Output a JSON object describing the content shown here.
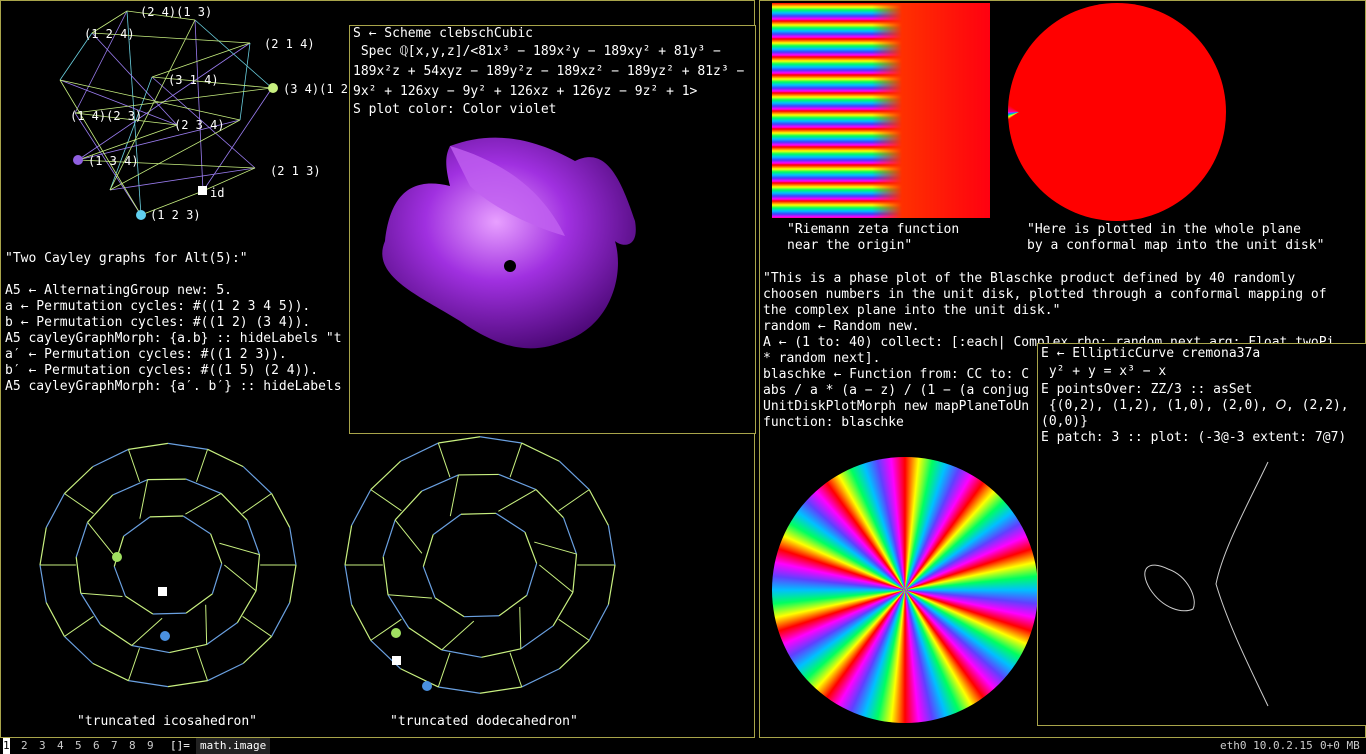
{
  "left": {
    "graph_labels": [
      "(2 4)(1 3)",
      "(1 2 4)",
      "(2 1 4)",
      "(3 1 4)",
      "(3 4)(1 2)",
      "(1 4)(2 3)",
      "(2 3 4)",
      "(1 3 4)",
      "(2 1 3)",
      "id",
      "(1 2 3)"
    ],
    "code": [
      "\"Two Cayley graphs for Alt(5):\"",
      "",
      "A5 ← AlternatingGroup new: 5.",
      "a ← Permutation cycles: #((1 2 3 4 5)).",
      "b ← Permutation cycles: #((1 2) (3 4)).",
      "A5 cayleyGraphMorph: {a.b} :: hideLabels \"t",
      "a′ ← Permutation cycles: #((1 2 3)).",
      "b′ ← Permutation cycles: #((1 5) (2 4)).",
      "A5 cayleyGraphMorph: {a′. b′} :: hideLabels"
    ],
    "captions": [
      "\"truncated icosahedron\"",
      "\"truncated dodecahedron\""
    ]
  },
  "scheme_window": {
    "lines": [
      "S ← Scheme clebschCubic",
      " Spec ℚ[x,y,z]/<81x³ − 189x²y − 189xy² + 81y³ −",
      "189x²z + 54xyz − 189y²z − 189xz² − 189yz² + 81z³ −",
      "9x² + 126xy − 9y² + 126xz + 126yz − 9z² + 1>",
      "S plot color: Color violet"
    ]
  },
  "right": {
    "caption_zeta": [
      "\"Riemann zeta function",
      "near the origin\""
    ],
    "caption_disk": [
      "\"Here is plotted in the whole plane",
      "by a conformal map into the unit disk\""
    ],
    "code": [
      "\"This is a phase plot of the Blaschke product defined by 40 randomly",
      "choosen numbers in the unit disk, plotted through a conformal mapping of",
      "the complex plane into the unit disk.\"",
      "random ← Random new.",
      "A ← (1 to: 40) collect: [:each| Complex rho: random next arg: Float twoPi",
      "* random next].",
      "blaschke ← Function from: CC to: C",
      "abs / a * (a − z) / (1 − (a conjug",
      "UnitDiskPlotMorph new mapPlaneToUn",
      "function: blaschke"
    ]
  },
  "elliptic_window": {
    "lines": [
      "E ← EllipticCurve cremona37a",
      " y² + y = x³ − x",
      "E pointsOver: ZZ/3 :: asSet",
      " {(0,2), (1,2), (1,0), (2,0), 𝑂, (2,2),",
      "(0,0)}",
      "E patch: 3 :: plot: (-3@-3 extent: 7@7)"
    ]
  },
  "status_bar": {
    "workspaces": [
      "1",
      "2",
      "3",
      "4",
      "5",
      "6",
      "7",
      "8",
      "9"
    ],
    "layout": "[]=",
    "window_title": "math.image",
    "network": "eth0 10.0.2.15",
    "memory": "0+0 MB"
  }
}
